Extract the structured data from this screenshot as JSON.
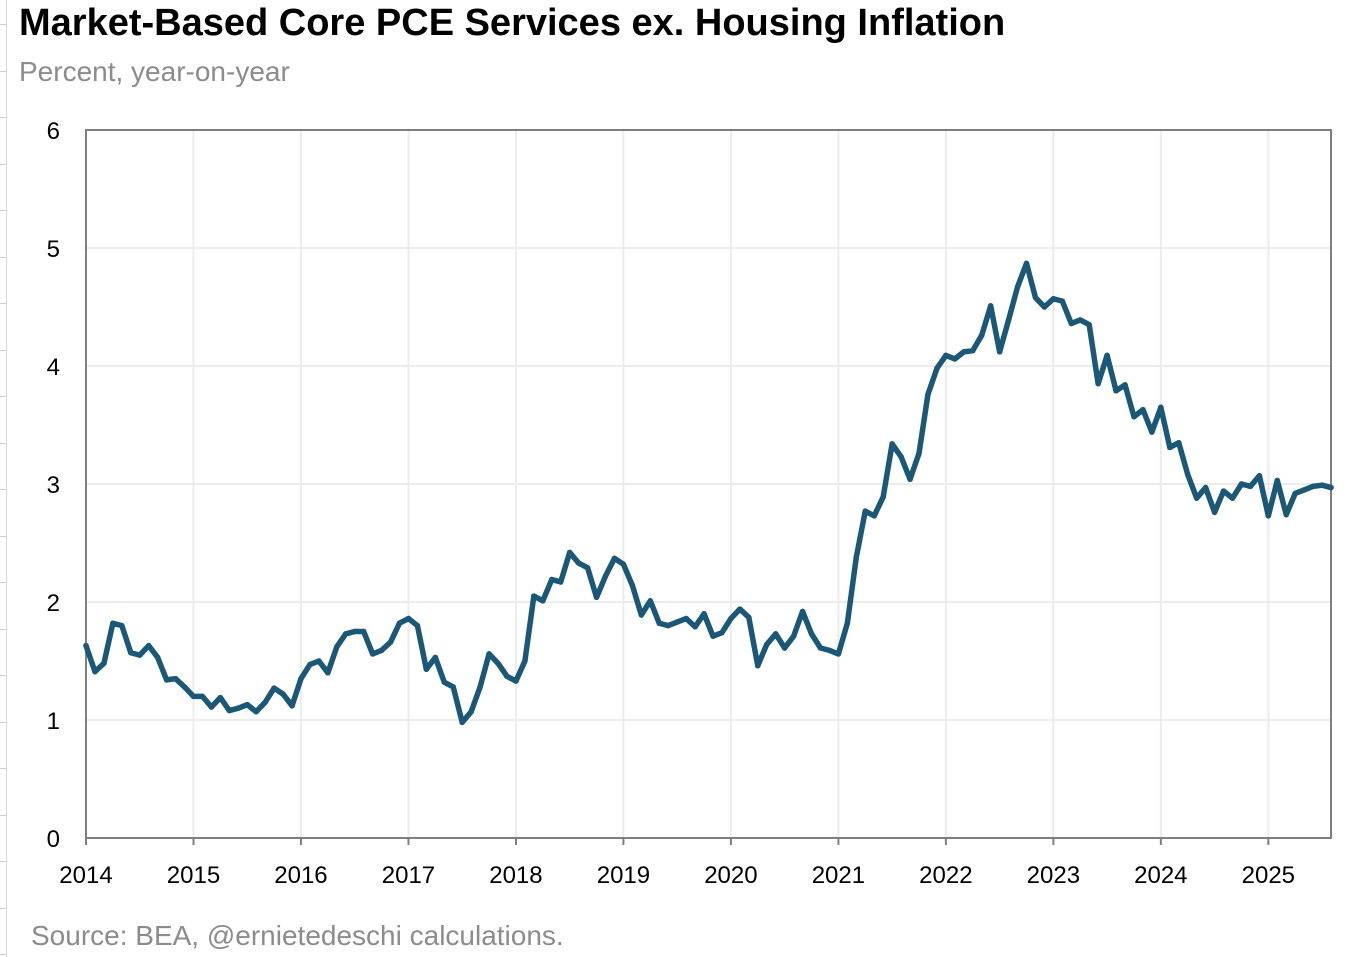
{
  "header": {
    "title": "Market-Based Core PCE Services ex. Housing Inflation",
    "subtitle": "Percent, year-on-year"
  },
  "footer": {
    "source": "Source: BEA, @ernietedeschi calculations."
  },
  "chart_data": {
    "type": "line",
    "title": "Market-Based Core PCE Services ex. Housing Inflation",
    "subtitle": "Percent, year-on-year",
    "xlabel": "",
    "ylabel": "",
    "xlim": [
      2014.0,
      2025.583
    ],
    "ylim": [
      0,
      6
    ],
    "x_ticks": [
      "2014",
      "2015",
      "2016",
      "2017",
      "2018",
      "2019",
      "2020",
      "2021",
      "2022",
      "2023",
      "2024",
      "2025"
    ],
    "y_ticks": [
      "0",
      "1",
      "2",
      "3",
      "4",
      "5",
      "6"
    ],
    "grid": true,
    "line_color": "#1b5878",
    "series": [
      {
        "name": "Market-Based Core PCE Services ex. Housing, % y/y",
        "start": "2014-01",
        "frequency": "monthly",
        "values": [
          1.63,
          1.41,
          1.48,
          1.82,
          1.8,
          1.57,
          1.55,
          1.63,
          1.53,
          1.34,
          1.35,
          1.28,
          1.2,
          1.2,
          1.11,
          1.19,
          1.08,
          1.1,
          1.13,
          1.07,
          1.15,
          1.27,
          1.22,
          1.12,
          1.35,
          1.47,
          1.5,
          1.4,
          1.62,
          1.73,
          1.75,
          1.75,
          1.56,
          1.59,
          1.66,
          1.82,
          1.86,
          1.8,
          1.43,
          1.53,
          1.32,
          1.28,
          0.98,
          1.07,
          1.28,
          1.56,
          1.48,
          1.37,
          1.33,
          1.5,
          2.05,
          2.01,
          2.19,
          2.17,
          2.42,
          2.33,
          2.29,
          2.04,
          2.22,
          2.37,
          2.32,
          2.14,
          1.89,
          2.01,
          1.82,
          1.8,
          1.83,
          1.86,
          1.79,
          1.9,
          1.71,
          1.74,
          1.86,
          1.94,
          1.87,
          1.46,
          1.64,
          1.73,
          1.61,
          1.71,
          1.92,
          1.73,
          1.61,
          1.59,
          1.56,
          1.82,
          2.38,
          2.77,
          2.73,
          2.89,
          3.34,
          3.23,
          3.04,
          3.26,
          3.76,
          3.98,
          4.09,
          4.06,
          4.12,
          4.13,
          4.26,
          4.51,
          4.12,
          4.39,
          4.67,
          4.87,
          4.58,
          4.5,
          4.57,
          4.55,
          4.36,
          4.39,
          4.35,
          3.85,
          4.09,
          3.79,
          3.84,
          3.57,
          3.63,
          3.44,
          3.65,
          3.31,
          3.35,
          3.08,
          2.88,
          2.97,
          2.76,
          2.94,
          2.88,
          3.0,
          2.98,
          3.07,
          2.73,
          3.03,
          2.74,
          2.92,
          2.95,
          2.98,
          2.99,
          2.97
        ]
      }
    ]
  }
}
